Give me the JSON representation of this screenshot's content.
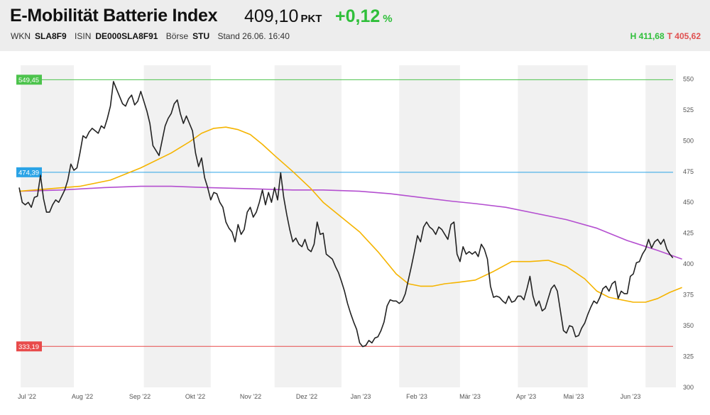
{
  "header": {
    "title": "E-Mobilität Batterie Index",
    "price": "409,10",
    "price_unit": "PKT",
    "change": "+0,12",
    "change_unit": "%",
    "wkn_label": "WKN",
    "wkn": "SLA8F9",
    "isin_label": "ISIN",
    "isin": "DE000SLA8F91",
    "exchange_label": "Börse",
    "exchange": "STU",
    "stand": "Stand 26.06. 16:40",
    "high": "H 411,68",
    "low": "T 405,62"
  },
  "colors": {
    "price_line": "#222222",
    "ma_orange": "#f5b400",
    "ma_purple": "#b44fd0",
    "level_high": "#4cc34c",
    "level_mid": "#2aa3e6",
    "level_low": "#e84a4a",
    "positive": "#2fbf3a",
    "negative": "#e05050"
  },
  "chart_data": {
    "type": "line",
    "x_ticks": [
      "Jul '22",
      "Aug '22",
      "Sep '22",
      "Okt '22",
      "Nov '22",
      "Dez '22",
      "Jan '23",
      "Feb '23",
      "Mär '23",
      "Apr '23",
      "Mai '23",
      "Jun '23"
    ],
    "ylim": [
      300,
      560
    ],
    "y_ticks": [
      300,
      325,
      350,
      375,
      400,
      425,
      450,
      475,
      500,
      525,
      550
    ],
    "levels": [
      {
        "label": "549,45",
        "value": 549.45,
        "color": "#4cc34c"
      },
      {
        "label": "474,39",
        "value": 474.39,
        "color": "#2aa3e6"
      },
      {
        "label": "333,19",
        "value": 333.19,
        "color": "#e84a4a"
      }
    ],
    "grid": "alternating vertical month bands",
    "series": [
      {
        "key": "price",
        "color": "#222222",
        "values": [
          [
            0,
            462
          ],
          [
            1,
            450
          ],
          [
            2,
            448
          ],
          [
            3,
            450
          ],
          [
            4,
            446
          ],
          [
            5,
            454
          ],
          [
            6,
            455
          ],
          [
            7,
            472
          ],
          [
            8,
            453
          ],
          [
            9,
            442
          ],
          [
            10,
            442
          ],
          [
            11,
            448
          ],
          [
            12,
            452
          ],
          [
            13,
            450
          ],
          [
            14,
            455
          ],
          [
            15,
            460
          ],
          [
            16,
            468
          ],
          [
            17,
            481
          ],
          [
            18,
            476
          ],
          [
            19,
            478
          ],
          [
            20,
            490
          ],
          [
            21,
            504
          ],
          [
            22,
            502
          ],
          [
            23,
            507
          ],
          [
            24,
            510
          ],
          [
            25,
            508
          ],
          [
            26,
            506
          ],
          [
            27,
            512
          ],
          [
            28,
            510
          ],
          [
            29,
            518
          ],
          [
            30,
            528
          ],
          [
            31,
            548
          ],
          [
            32,
            542
          ],
          [
            33,
            536
          ],
          [
            34,
            530
          ],
          [
            35,
            528
          ],
          [
            36,
            534
          ],
          [
            37,
            537
          ],
          [
            38,
            529
          ],
          [
            39,
            532
          ],
          [
            40,
            540
          ],
          [
            41,
            532
          ],
          [
            42,
            524
          ],
          [
            43,
            514
          ],
          [
            44,
            496
          ],
          [
            45,
            492
          ],
          [
            46,
            488
          ],
          [
            47,
            500
          ],
          [
            48,
            512
          ],
          [
            49,
            518
          ],
          [
            50,
            522
          ],
          [
            51,
            530
          ],
          [
            52,
            533
          ],
          [
            53,
            522
          ],
          [
            54,
            514
          ],
          [
            55,
            520
          ],
          [
            56,
            514
          ],
          [
            57,
            508
          ],
          [
            58,
            490
          ],
          [
            59,
            479
          ],
          [
            60,
            486
          ],
          [
            61,
            470
          ],
          [
            62,
            462
          ],
          [
            63,
            452
          ],
          [
            64,
            458
          ],
          [
            65,
            457
          ],
          [
            66,
            450
          ],
          [
            67,
            446
          ],
          [
            68,
            434
          ],
          [
            69,
            429
          ],
          [
            70,
            426
          ],
          [
            71,
            418
          ],
          [
            72,
            432
          ],
          [
            73,
            424
          ],
          [
            74,
            428
          ],
          [
            75,
            442
          ],
          [
            76,
            446
          ],
          [
            77,
            438
          ],
          [
            78,
            442
          ],
          [
            79,
            450
          ],
          [
            80,
            460
          ],
          [
            81,
            448
          ],
          [
            82,
            458
          ],
          [
            83,
            450
          ],
          [
            84,
            462
          ],
          [
            85,
            452
          ],
          [
            86,
            474
          ],
          [
            87,
            454
          ],
          [
            88,
            440
          ],
          [
            89,
            428
          ],
          [
            90,
            418
          ],
          [
            91,
            421
          ],
          [
            92,
            416
          ],
          [
            93,
            414
          ],
          [
            94,
            420
          ],
          [
            95,
            412
          ],
          [
            96,
            410
          ],
          [
            97,
            416
          ],
          [
            98,
            434
          ],
          [
            99,
            424
          ],
          [
            100,
            425
          ],
          [
            101,
            408
          ],
          [
            102,
            406
          ],
          [
            103,
            404
          ],
          [
            104,
            398
          ],
          [
            105,
            393
          ],
          [
            106,
            386
          ],
          [
            107,
            378
          ],
          [
            108,
            368
          ],
          [
            109,
            360
          ],
          [
            110,
            353
          ],
          [
            111,
            347
          ],
          [
            112,
            336
          ],
          [
            113,
            333
          ],
          [
            114,
            334
          ],
          [
            115,
            338
          ],
          [
            116,
            336
          ],
          [
            117,
            340
          ],
          [
            118,
            341
          ],
          [
            119,
            346
          ],
          [
            120,
            353
          ],
          [
            121,
            366
          ],
          [
            122,
            371
          ],
          [
            123,
            370
          ],
          [
            124,
            370
          ],
          [
            125,
            368
          ],
          [
            126,
            370
          ],
          [
            127,
            376
          ],
          [
            128,
            387
          ],
          [
            129,
            398
          ],
          [
            130,
            410
          ],
          [
            131,
            423
          ],
          [
            132,
            418
          ],
          [
            133,
            430
          ],
          [
            134,
            434
          ],
          [
            135,
            430
          ],
          [
            136,
            428
          ],
          [
            137,
            424
          ],
          [
            138,
            430
          ],
          [
            139,
            428
          ],
          [
            140,
            424
          ],
          [
            141,
            420
          ],
          [
            142,
            432
          ],
          [
            143,
            434
          ],
          [
            144,
            408
          ],
          [
            145,
            402
          ],
          [
            146,
            414
          ],
          [
            147,
            408
          ],
          [
            148,
            410
          ],
          [
            149,
            408
          ],
          [
            150,
            410
          ],
          [
            151,
            406
          ],
          [
            152,
            416
          ],
          [
            153,
            412
          ],
          [
            154,
            404
          ],
          [
            155,
            382
          ],
          [
            156,
            373
          ],
          [
            157,
            374
          ],
          [
            158,
            373
          ],
          [
            159,
            370
          ],
          [
            160,
            368
          ],
          [
            161,
            374
          ],
          [
            162,
            369
          ],
          [
            163,
            370
          ],
          [
            164,
            374
          ],
          [
            165,
            374
          ],
          [
            166,
            371
          ],
          [
            167,
            380
          ],
          [
            168,
            390
          ],
          [
            169,
            374
          ],
          [
            170,
            366
          ],
          [
            171,
            370
          ],
          [
            172,
            362
          ],
          [
            173,
            364
          ],
          [
            174,
            372
          ],
          [
            175,
            380
          ],
          [
            176,
            383
          ],
          [
            177,
            378
          ],
          [
            178,
            362
          ],
          [
            179,
            346
          ],
          [
            180,
            344
          ],
          [
            181,
            350
          ],
          [
            182,
            349
          ],
          [
            183,
            341
          ],
          [
            184,
            342
          ],
          [
            185,
            348
          ],
          [
            186,
            352
          ],
          [
            187,
            359
          ],
          [
            188,
            365
          ],
          [
            189,
            370
          ],
          [
            190,
            368
          ],
          [
            191,
            373
          ],
          [
            192,
            380
          ],
          [
            193,
            382
          ],
          [
            194,
            378
          ],
          [
            195,
            384
          ],
          [
            196,
            386
          ],
          [
            197,
            372
          ],
          [
            198,
            378
          ],
          [
            199,
            376
          ],
          [
            200,
            376
          ],
          [
            201,
            390
          ],
          [
            202,
            392
          ],
          [
            203,
            401
          ],
          [
            204,
            402
          ],
          [
            205,
            408
          ],
          [
            206,
            412
          ],
          [
            207,
            420
          ],
          [
            208,
            413
          ],
          [
            209,
            418
          ],
          [
            210,
            420
          ],
          [
            211,
            416
          ],
          [
            212,
            420
          ],
          [
            213,
            412
          ],
          [
            214,
            408
          ],
          [
            215,
            405
          ]
        ]
      },
      {
        "key": "ma_orange",
        "color": "#f5b400",
        "values": [
          [
            0,
            459
          ],
          [
            10,
            461
          ],
          [
            20,
            463
          ],
          [
            30,
            468
          ],
          [
            40,
            478
          ],
          [
            50,
            490
          ],
          [
            56,
            499
          ],
          [
            60,
            506
          ],
          [
            64,
            510
          ],
          [
            68,
            511
          ],
          [
            72,
            509
          ],
          [
            76,
            505
          ],
          [
            80,
            497
          ],
          [
            84,
            488
          ],
          [
            90,
            475
          ],
          [
            96,
            461
          ],
          [
            100,
            450
          ],
          [
            106,
            438
          ],
          [
            112,
            426
          ],
          [
            118,
            410
          ],
          [
            124,
            392
          ],
          [
            128,
            384
          ],
          [
            132,
            382
          ],
          [
            136,
            382
          ],
          [
            140,
            384
          ],
          [
            144,
            385
          ],
          [
            150,
            387
          ],
          [
            156,
            394
          ],
          [
            162,
            402
          ],
          [
            168,
            402
          ],
          [
            174,
            403
          ],
          [
            180,
            398
          ],
          [
            186,
            388
          ],
          [
            190,
            378
          ],
          [
            194,
            373
          ],
          [
            198,
            371
          ],
          [
            202,
            369
          ],
          [
            206,
            369
          ],
          [
            210,
            372
          ],
          [
            214,
            377
          ],
          [
            218,
            381
          ]
        ]
      },
      {
        "key": "ma_purple",
        "color": "#b44fd0",
        "values": [
          [
            0,
            459
          ],
          [
            14,
            460
          ],
          [
            28,
            462
          ],
          [
            40,
            463
          ],
          [
            50,
            463
          ],
          [
            62,
            462
          ],
          [
            76,
            461
          ],
          [
            90,
            460
          ],
          [
            100,
            460
          ],
          [
            112,
            459
          ],
          [
            122,
            457
          ],
          [
            132,
            454
          ],
          [
            142,
            451
          ],
          [
            150,
            449
          ],
          [
            160,
            446
          ],
          [
            170,
            441
          ],
          [
            180,
            436
          ],
          [
            190,
            429
          ],
          [
            200,
            419
          ],
          [
            210,
            411
          ],
          [
            218,
            404
          ]
        ]
      }
    ]
  }
}
